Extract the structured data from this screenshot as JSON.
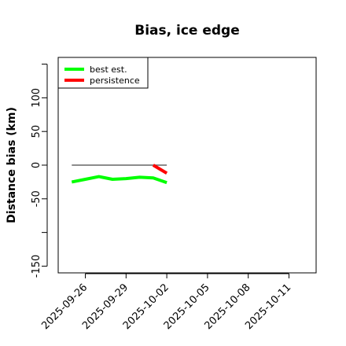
{
  "chart_data": {
    "type": "line",
    "title": "Bias, ice edge",
    "xlabel": "",
    "ylabel": "Distance bias (km)",
    "x_axis": {
      "type": "date",
      "range": [
        "2025-09-24",
        "2025-10-13"
      ],
      "ticks": [
        "2025-09-26",
        "2025-09-29",
        "2025-10-02",
        "2025-10-05",
        "2025-10-08",
        "2025-10-11"
      ]
    },
    "y_axis": {
      "range": [
        -160,
        160
      ],
      "ticks": [
        -150,
        -50,
        0,
        50,
        100
      ],
      "tick_labels": [
        "-150",
        "-50",
        "0",
        "50",
        "100"
      ],
      "minor_ticks": [
        -100,
        150
      ]
    },
    "reference_line": {
      "y": 0,
      "x_range": [
        "2025-09-25",
        "2025-10-02"
      ],
      "color": "#666666"
    },
    "series": [
      {
        "name": "best est.",
        "color": "#00ff00",
        "points": [
          {
            "x": "2025-09-25",
            "y": -25
          },
          {
            "x": "2025-09-26",
            "y": -21
          },
          {
            "x": "2025-09-27",
            "y": -17
          },
          {
            "x": "2025-09-28",
            "y": -21
          },
          {
            "x": "2025-09-29",
            "y": -20
          },
          {
            "x": "2025-09-30",
            "y": -18
          },
          {
            "x": "2025-10-01",
            "y": -19
          },
          {
            "x": "2025-10-02",
            "y": -26
          }
        ]
      },
      {
        "name": "persistence",
        "color": "#ff0000",
        "points": [
          {
            "x": "2025-10-01",
            "y": 0
          },
          {
            "x": "2025-10-02",
            "y": -12
          }
        ]
      }
    ],
    "legend": {
      "position": "top-left"
    },
    "grid": false
  }
}
